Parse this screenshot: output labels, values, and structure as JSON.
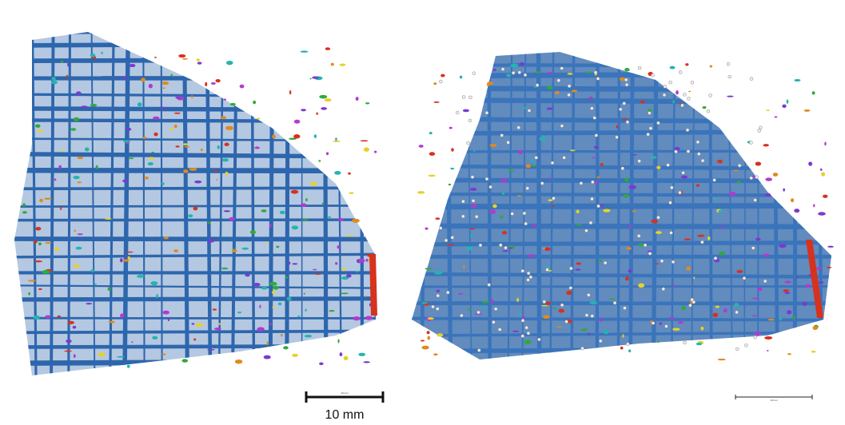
{
  "left_panel": {
    "scale_bar": {
      "inner_label": "10 mm",
      "caption": "10 mm"
    }
  },
  "right_panel": {
    "scale_bar": {
      "inner_label": "10 mm"
    }
  }
}
